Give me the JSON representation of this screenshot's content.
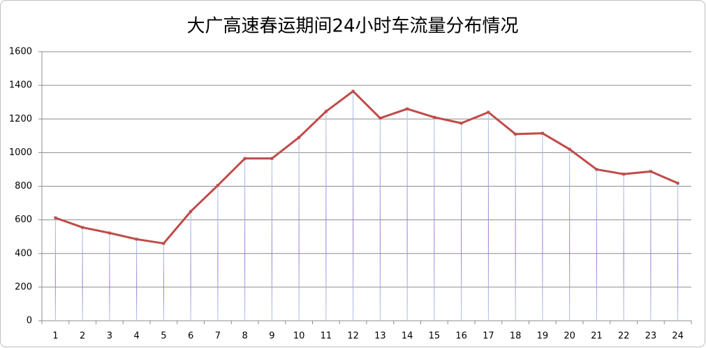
{
  "chart_data": {
    "type": "line",
    "title": "大广高速春运期间24小时车流量分布情况",
    "categories": [
      "1",
      "2",
      "3",
      "4",
      "5",
      "6",
      "7",
      "8",
      "9",
      "10",
      "11",
      "12",
      "13",
      "14",
      "15",
      "16",
      "17",
      "18",
      "19",
      "20",
      "21",
      "22",
      "23",
      "24"
    ],
    "values": [
      612,
      555,
      522,
      485,
      460,
      650,
      805,
      965,
      965,
      1090,
      1245,
      1365,
      1205,
      1260,
      1210,
      1175,
      1240,
      1110,
      1115,
      1020,
      900,
      872,
      888,
      818
    ],
    "color": "#be4b48",
    "drop_lines": true,
    "ylim": [
      0,
      1600
    ],
    "yticks": [
      0,
      200,
      400,
      600,
      800,
      1000,
      1200,
      1400,
      1600
    ],
    "grid": true
  }
}
